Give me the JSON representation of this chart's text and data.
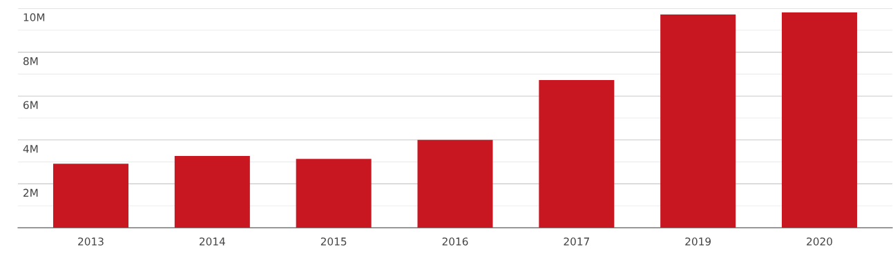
{
  "chart_data": {
    "type": "bar",
    "categories": [
      "2013",
      "2014",
      "2015",
      "2016",
      "2017",
      "2019",
      "2020"
    ],
    "values": [
      2920000,
      3270000,
      3140000,
      4000000,
      6730000,
      9720000,
      9810000
    ],
    "color": "#c91722",
    "ylim": [
      0,
      10000000
    ],
    "yticks": [
      {
        "value": 1000000,
        "label": null
      },
      {
        "value": 2000000,
        "label": "2M"
      },
      {
        "value": 3000000,
        "label": null
      },
      {
        "value": 4000000,
        "label": "4M"
      },
      {
        "value": 5000000,
        "label": null
      },
      {
        "value": 6000000,
        "label": "6M"
      },
      {
        "value": 7000000,
        "label": null
      },
      {
        "value": 8000000,
        "label": "8M"
      },
      {
        "value": 9000000,
        "label": null
      },
      {
        "value": 10000000,
        "label": "10M"
      }
    ],
    "grid": "y"
  }
}
